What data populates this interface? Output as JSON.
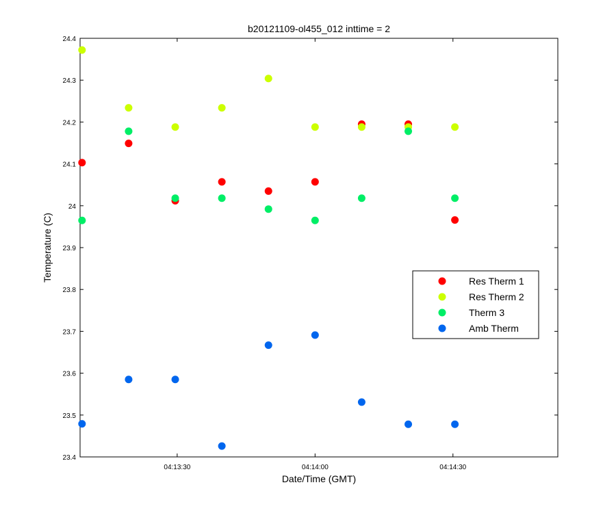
{
  "chart_data": {
    "type": "scatter",
    "title": "b20121109-ol455_012 inttime = 2",
    "xlabel": "Date/Time (GMT)",
    "ylabel": "Temperature (C)",
    "xlim": [
      13.3,
      25.6
    ],
    "ylim": [
      23.4,
      24.4
    ],
    "x_ticks": [
      {
        "value": 15.8,
        "label": "04:13:30"
      },
      {
        "value": 19.35,
        "label": "04:14:00"
      },
      {
        "value": 22.9,
        "label": "04:14:30"
      }
    ],
    "y_ticks": [
      {
        "value": 23.4,
        "label": "23.4"
      },
      {
        "value": 23.5,
        "label": "23.5"
      },
      {
        "value": 23.6,
        "label": "23.6"
      },
      {
        "value": 23.7,
        "label": "23.7"
      },
      {
        "value": 23.8,
        "label": "23.8"
      },
      {
        "value": 23.9,
        "label": "23.9"
      },
      {
        "value": 24.0,
        "label": "24"
      },
      {
        "value": 24.1,
        "label": "24.1"
      },
      {
        "value": 24.2,
        "label": "24.2"
      },
      {
        "value": 24.3,
        "label": "24.3"
      },
      {
        "value": 24.4,
        "label": "24.4"
      }
    ],
    "grid": false,
    "legend_position": "right",
    "x": [
      13.35,
      14.55,
      15.75,
      16.95,
      18.15,
      19.35,
      20.55,
      21.75,
      22.95
    ],
    "series": [
      {
        "name": "Res Therm 1",
        "color": "#ff0000",
        "values": [
          24.103,
          24.149,
          24.012,
          24.057,
          24.035,
          24.057,
          24.195,
          24.195,
          23.966
        ]
      },
      {
        "name": "Res Therm 2",
        "color": "#ccff00",
        "values": [
          24.372,
          24.234,
          24.188,
          24.234,
          24.304,
          24.188,
          24.188,
          24.188,
          24.188
        ]
      },
      {
        "name": "Therm 3",
        "color": "#00ee66",
        "values": [
          23.965,
          24.178,
          24.018,
          24.018,
          23.992,
          23.965,
          24.018,
          24.178,
          24.018
        ]
      },
      {
        "name": "Amb Therm",
        "color": "#0066ee",
        "values": [
          23.479,
          23.585,
          23.585,
          23.426,
          23.667,
          23.691,
          23.531,
          23.478,
          23.478
        ]
      }
    ]
  }
}
